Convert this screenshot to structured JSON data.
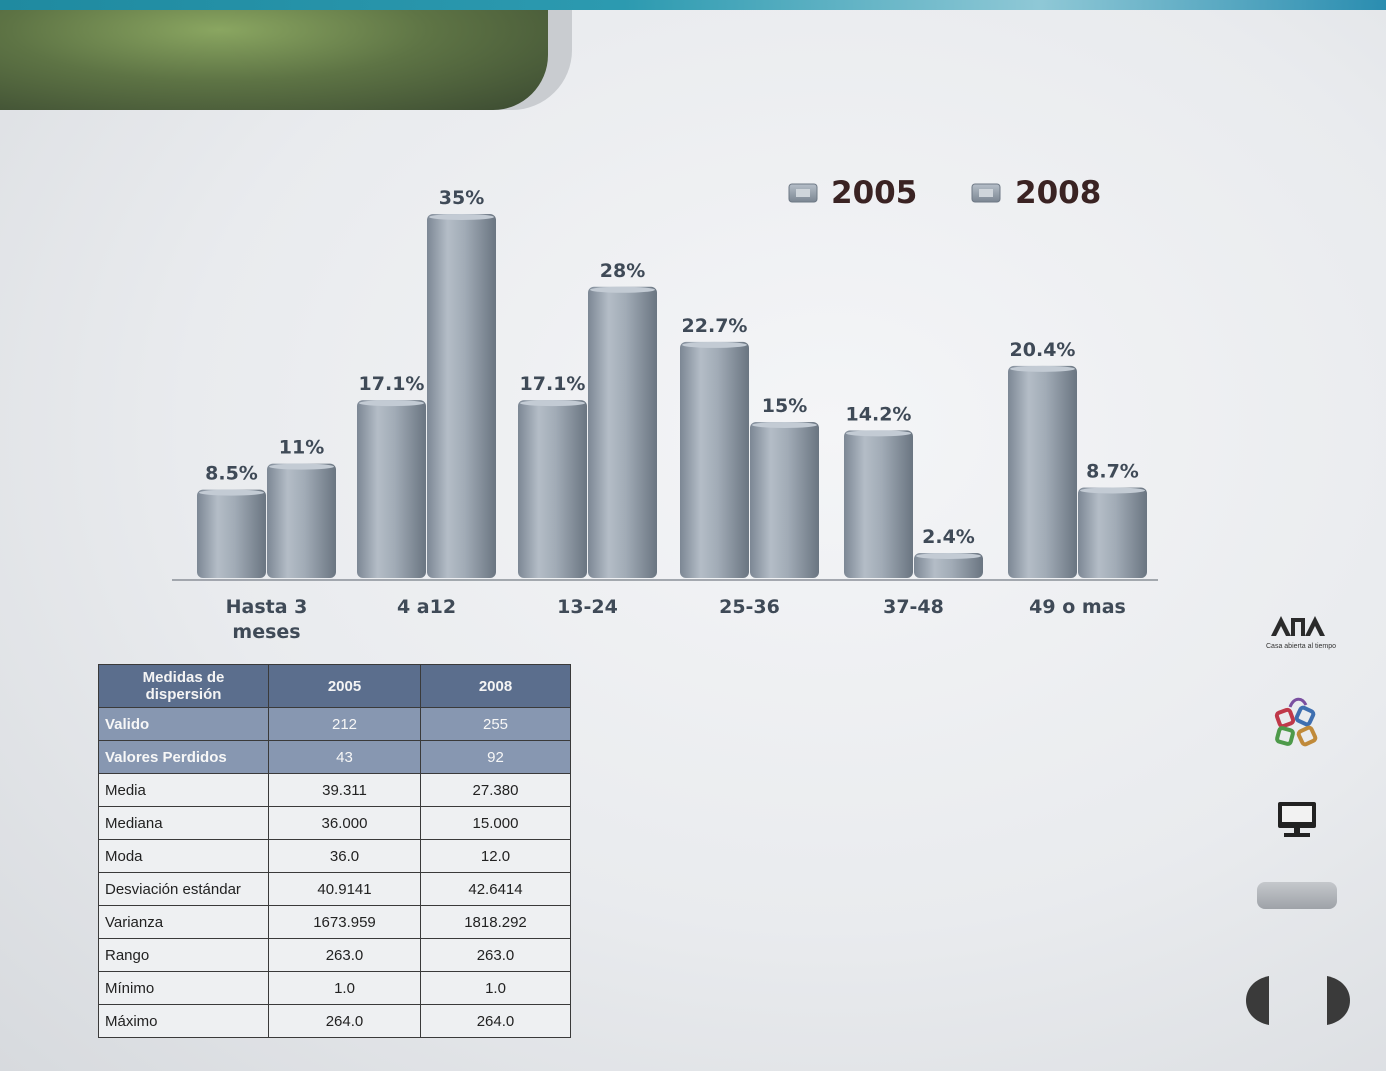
{
  "chart_data": {
    "type": "bar",
    "categories": [
      [
        "Hasta 3",
        "meses"
      ],
      [
        "4 a12"
      ],
      [
        "13-24"
      ],
      [
        "25-36"
      ],
      [
        "37-48"
      ],
      [
        "49 o mas"
      ]
    ],
    "series": [
      {
        "name": "2005",
        "values": [
          8.5,
          17.1,
          17.1,
          22.7,
          14.2,
          20.4
        ],
        "labels": [
          "8.5%",
          "17.1%",
          "17.1%",
          "22.7%",
          "14.2%",
          "20.4%"
        ]
      },
      {
        "name": "2008",
        "values": [
          11,
          35,
          28,
          15,
          2.4,
          8.7
        ],
        "labels": [
          "11%",
          "35%",
          "28%",
          "15%",
          "2.4%",
          "8.7%"
        ]
      }
    ],
    "legend_position": "top-right",
    "grid": false,
    "colors": {
      "bar": "#9aa5b1",
      "bar_dark": "#6e7a86",
      "label": "#3f4a57",
      "legend_text": "#3a2323"
    }
  },
  "table": {
    "headers": [
      "Medidas  de dispersión",
      "2005",
      "2008"
    ],
    "rows": [
      {
        "label": "Valido",
        "v2005": "212",
        "v2008": "255",
        "highlight": true
      },
      {
        "label": "Valores Perdidos",
        "v2005": "43",
        "v2008": "92",
        "highlight": true
      },
      {
        "label": "Media",
        "v2005": "39.311",
        "v2008": "27.380"
      },
      {
        "label": "Mediana",
        "v2005": "36.000",
        "v2008": "15.000"
      },
      {
        "label": "Moda",
        "v2005": "36.0",
        "v2008": "12.0"
      },
      {
        "label": "Desviación  estándar",
        "v2005": "40.9141",
        "v2008": "42.6414"
      },
      {
        "label": "Varianza",
        "v2005": "1673.959",
        "v2008": "1818.292"
      },
      {
        "label": "Rango",
        "v2005": "263.0",
        "v2008": "263.0"
      },
      {
        "label": "Mínimo",
        "v2005": "1.0",
        "v2008": "1.0"
      },
      {
        "label": "Máximo",
        "v2005": "264.0",
        "v2008": "264.0"
      }
    ]
  },
  "sidebar": {
    "logo_text": "Casa abierta al tiempo"
  },
  "icons": [
    "uam-logo",
    "puzzle-icon",
    "monitor-icon",
    "prev-arrow-icon",
    "next-arrow-icon"
  ]
}
